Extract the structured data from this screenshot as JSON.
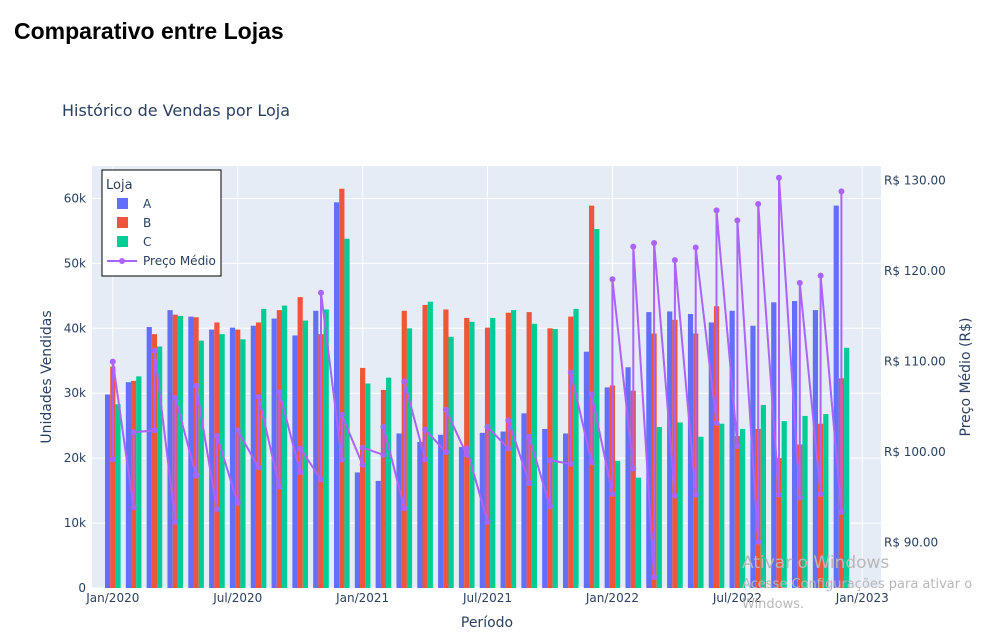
{
  "page": {
    "heading": "Comparativo entre Lojas"
  },
  "watermark": {
    "line1": "Ativar o Windows",
    "line2": "Acesse Configurações para ativar o",
    "line3": "Windows."
  },
  "chart_data": {
    "type": "bar",
    "title": "Histórico de Vendas por Loja",
    "xlabel": "Período",
    "ylabel": "Unidades Vendidas",
    "y2label": "Preço Médio (R$)",
    "ylim": [
      0,
      65000
    ],
    "y2lim": [
      85,
      131.6
    ],
    "yticks": [
      0,
      10000,
      20000,
      30000,
      40000,
      50000,
      60000
    ],
    "ytick_labels": [
      "0",
      "10k",
      "20k",
      "30k",
      "40k",
      "50k",
      "60k"
    ],
    "y2ticks": [
      90,
      100,
      110,
      120,
      130
    ],
    "y2tick_labels": [
      "R$ 90.00",
      "R$ 100.00",
      "R$ 110.00",
      "R$ 120.00",
      "R$ 130.00"
    ],
    "xticks": [
      "Jan/2020",
      "Jul/2020",
      "Jan/2021",
      "Jul/2021",
      "Jan/2022",
      "Jul/2022",
      "Jan/2023"
    ],
    "xtick_months": [
      0,
      6,
      12,
      18,
      24,
      30,
      36
    ],
    "legend_title": "Loja",
    "legend_position": "top-left",
    "grid": true,
    "colors": {
      "A": "#636efa",
      "B": "#ef553b",
      "C": "#00cc96",
      "line": "#ab63fa",
      "plot_bg": "#e5ecf6"
    },
    "months": [
      "2020-01",
      "2020-02",
      "2020-03",
      "2020-04",
      "2020-05",
      "2020-06",
      "2020-07",
      "2020-08",
      "2020-09",
      "2020-10",
      "2020-11",
      "2020-12",
      "2021-01",
      "2021-02",
      "2021-03",
      "2021-04",
      "2021-05",
      "2021-06",
      "2021-07",
      "2021-08",
      "2021-09",
      "2021-10",
      "2021-11",
      "2021-12",
      "2022-01",
      "2022-02",
      "2022-03",
      "2022-04",
      "2022-05",
      "2022-06",
      "2022-07",
      "2022-08",
      "2022-09",
      "2022-10",
      "2022-11",
      "2022-12"
    ],
    "series": [
      {
        "name": "A",
        "values": [
          29800,
          31700,
          40200,
          42800,
          41800,
          39800,
          40100,
          40400,
          41500,
          38900,
          42700,
          59400,
          17800,
          16500,
          23800,
          22500,
          23600,
          21700,
          23900,
          24100,
          26900,
          24500,
          23800,
          36400,
          30900,
          34000,
          42500,
          42600,
          42200,
          40900,
          42700,
          40400,
          44000,
          44200,
          42800,
          58900
        ]
      },
      {
        "name": "B",
        "values": [
          34100,
          31900,
          39100,
          42100,
          41700,
          40900,
          39800,
          40900,
          42800,
          44800,
          39100,
          61500,
          33900,
          30500,
          42700,
          43600,
          42900,
          41600,
          40100,
          42400,
          42500,
          40000,
          41800,
          58900,
          31200,
          30400,
          39200,
          41300,
          39200,
          43400,
          23400,
          24500,
          20000,
          22100,
          25300,
          32300
        ]
      },
      {
        "name": "C",
        "values": [
          28300,
          32600,
          37200,
          41900,
          38100,
          39100,
          38300,
          43000,
          43500,
          41200,
          42900,
          53800,
          31500,
          32400,
          40000,
          44100,
          38700,
          41000,
          41600,
          42800,
          40700,
          39900,
          43000,
          55300,
          19600,
          17000,
          24800,
          25500,
          23300,
          25300,
          24500,
          28200,
          25700,
          26500,
          26800,
          37000
        ]
      },
      {
        "name": "Preço Médio",
        "values": [
          [
            99.2,
            110.0
          ],
          [
            93.9,
            102.2
          ],
          [
            102.4,
            111.2
          ],
          [
            92.3,
            106.0
          ],
          [
            97.4,
            107.3
          ],
          [
            93.7,
            101.8
          ],
          [
            94.4,
            102.4
          ],
          [
            98.3,
            106.1
          ],
          [
            96.2,
            106.6
          ],
          [
            97.8,
            100.4
          ],
          [
            97.0,
            117.6
          ],
          [
            99.2,
            104.1
          ],
          [
            98.6,
            100.5
          ],
          [
            99.7,
            102.8
          ],
          [
            93.8,
            107.8
          ],
          [
            99.2,
            102.5
          ],
          [
            100.0,
            104.7
          ],
          [
            99.7,
            100.4
          ],
          [
            92.3,
            102.8
          ],
          [
            100.4,
            103.5
          ],
          [
            96.6,
            101.7
          ],
          [
            94.0,
            99.1
          ],
          [
            98.7,
            108.8
          ],
          [
            98.9,
            106.4
          ],
          [
            95.4,
            119.1
          ],
          [
            98.2,
            122.7
          ],
          [
            86.2,
            123.1
          ],
          [
            95.2,
            121.2
          ],
          [
            95.3,
            122.6
          ],
          [
            103.2,
            126.7
          ],
          [
            100.7,
            125.6
          ],
          [
            90.1,
            127.4
          ],
          [
            95.3,
            130.3
          ],
          [
            95.0,
            118.7
          ],
          [
            95.4,
            119.5
          ],
          [
            93.4,
            128.8
          ]
        ]
      }
    ]
  }
}
